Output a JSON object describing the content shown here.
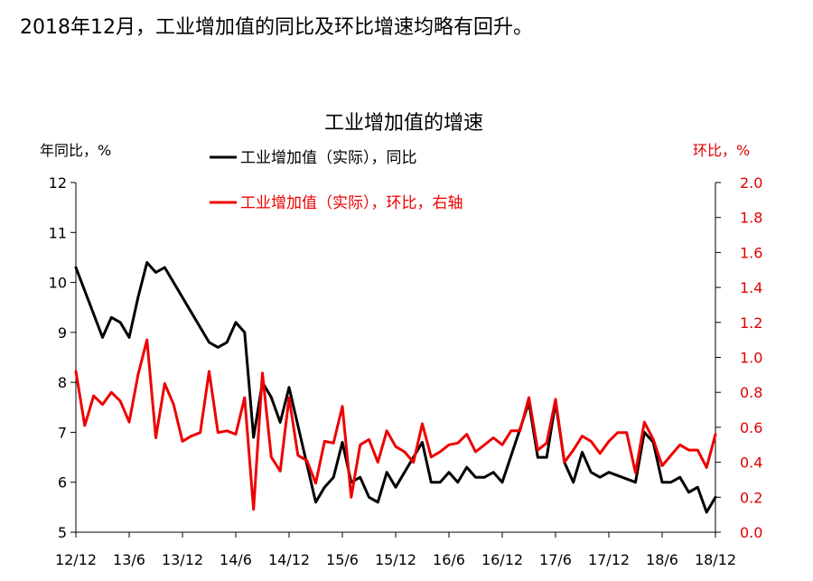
{
  "headline": "2018年12月，工业增加值的同比及环比增速均略有回升。",
  "chart_data": {
    "type": "line",
    "title": "工业增加值的增速",
    "ylabel_left": "年同比，%",
    "ylabel_right": "环比，%",
    "x_tick_labels": [
      "12/12",
      "13/6",
      "13/12",
      "14/6",
      "14/12",
      "15/6",
      "15/12",
      "16/6",
      "16/12",
      "17/6",
      "17/12",
      "18/6",
      "18/12"
    ],
    "ylim_left": [
      5,
      12
    ],
    "yticks_left": [
      5,
      6,
      7,
      8,
      9,
      10,
      11,
      12
    ],
    "ylim_right": [
      0.0,
      2.0
    ],
    "yticks_right": [
      "0.0",
      "0.2",
      "0.4",
      "0.6",
      "0.8",
      "1.0",
      "1.2",
      "1.4",
      "1.6",
      "1.8",
      "2.0"
    ],
    "grid": false,
    "legend_position": "top",
    "series": [
      {
        "name": "工业增加值（实际），同比",
        "color": "#000000",
        "axis": "left",
        "x": [
          "12/12",
          "13/3",
          "13/4",
          "13/5",
          "13/6",
          "13/7",
          "13/8",
          "13/9",
          "13/10",
          "13/11",
          "13/12",
          "14/3",
          "14/4",
          "14/5",
          "14/6",
          "14/7",
          "14/8",
          "14/9",
          "14/10",
          "14/11",
          "14/12",
          "15/3",
          "15/4",
          "15/5",
          "15/6",
          "15/7",
          "15/8",
          "15/9",
          "15/10",
          "15/11",
          "15/12",
          "16/3",
          "16/4",
          "16/5",
          "16/6",
          "16/7",
          "16/8",
          "16/9",
          "16/10",
          "16/11",
          "16/12",
          "17/3",
          "17/4",
          "17/5",
          "17/6",
          "17/7",
          "17/8",
          "17/9",
          "17/10",
          "17/11",
          "17/12",
          "18/3",
          "18/4",
          "18/5",
          "18/6",
          "18/7",
          "18/8",
          "18/9",
          "18/10",
          "18/11",
          "18/12"
        ],
        "values": [
          10.3,
          8.9,
          9.3,
          9.2,
          8.9,
          9.7,
          10.4,
          10.2,
          10.3,
          10.0,
          9.7,
          8.8,
          8.7,
          8.8,
          9.2,
          9.0,
          6.9,
          8.0,
          7.7,
          7.2,
          7.9,
          5.6,
          5.9,
          6.1,
          6.8,
          6.0,
          6.1,
          5.7,
          5.6,
          6.2,
          5.9,
          6.8,
          6.0,
          6.0,
          6.2,
          6.0,
          6.3,
          6.1,
          6.1,
          6.2,
          6.0,
          7.6,
          6.5,
          6.5,
          7.6,
          6.4,
          6.0,
          6.6,
          6.2,
          6.1,
          6.2,
          6.0,
          7.0,
          6.8,
          6.0,
          6.0,
          6.1,
          5.8,
          5.9,
          5.4,
          5.7
        ]
      },
      {
        "name": "工业增加值（实际），环比，右轴",
        "color": "#ee0000",
        "axis": "right",
        "x": [
          "12/12",
          "13/1",
          "13/2",
          "13/3",
          "13/4",
          "13/5",
          "13/6",
          "13/7",
          "13/8",
          "13/9",
          "13/10",
          "13/11",
          "13/12",
          "14/1",
          "14/2",
          "14/3",
          "14/4",
          "14/5",
          "14/6",
          "14/7",
          "14/8",
          "14/9",
          "14/10",
          "14/11",
          "14/12",
          "15/1",
          "15/2",
          "15/3",
          "15/4",
          "15/5",
          "15/6",
          "15/7",
          "15/8",
          "15/9",
          "15/10",
          "15/11",
          "15/12",
          "16/1",
          "16/2",
          "16/3",
          "16/4",
          "16/5",
          "16/6",
          "16/7",
          "16/8",
          "16/9",
          "16/10",
          "16/11",
          "16/12",
          "17/1",
          "17/2",
          "17/3",
          "17/4",
          "17/5",
          "17/6",
          "17/7",
          "17/8",
          "17/9",
          "17/10",
          "17/11",
          "17/12",
          "18/1",
          "18/2",
          "18/3",
          "18/4",
          "18/5",
          "18/6",
          "18/7",
          "18/8",
          "18/9",
          "18/10",
          "18/11",
          "18/12"
        ],
        "values": [
          0.92,
          0.61,
          0.78,
          0.73,
          0.8,
          0.75,
          0.63,
          0.9,
          1.1,
          0.54,
          0.85,
          0.73,
          0.52,
          0.55,
          0.57,
          0.92,
          0.57,
          0.58,
          0.56,
          0.77,
          0.13,
          0.91,
          0.43,
          0.35,
          0.77,
          0.44,
          0.41,
          0.28,
          0.52,
          0.51,
          0.72,
          0.2,
          0.5,
          0.53,
          0.4,
          0.58,
          0.49,
          0.46,
          0.4,
          0.62,
          0.43,
          0.46,
          0.5,
          0.51,
          0.56,
          0.46,
          0.5,
          0.54,
          0.5,
          0.58,
          0.58,
          0.77,
          0.47,
          0.51,
          0.76,
          0.4,
          0.47,
          0.55,
          0.52,
          0.45,
          0.52,
          0.57,
          0.57,
          0.34,
          0.63,
          0.53,
          0.38,
          0.44,
          0.5,
          0.47,
          0.47,
          0.37,
          0.56
        ]
      }
    ]
  }
}
